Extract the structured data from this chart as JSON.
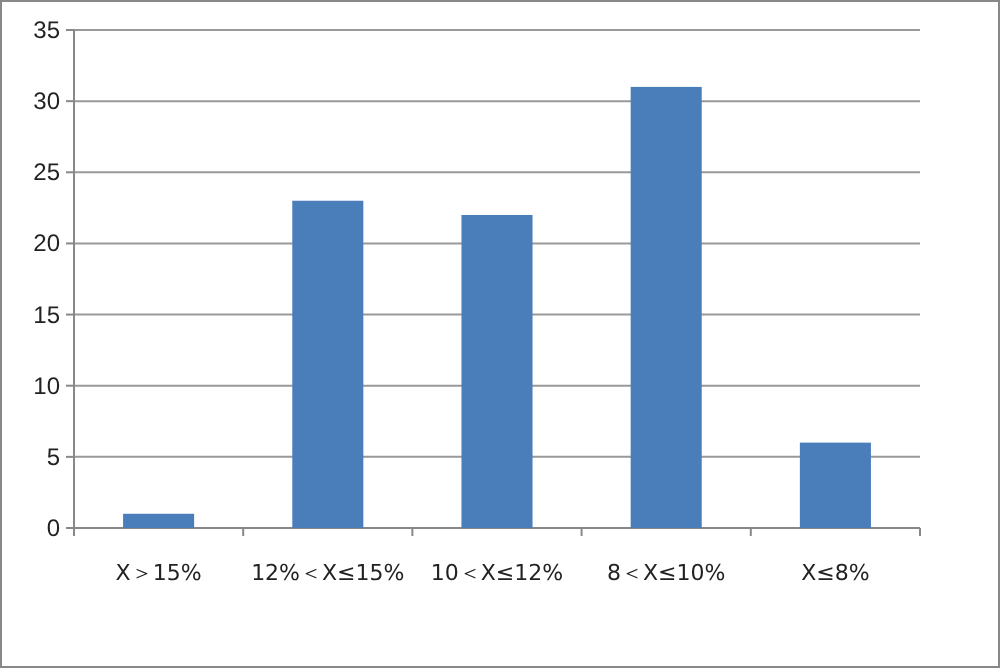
{
  "chart_data": {
    "type": "bar",
    "categories": [
      "X＞15%",
      "12%＜X≤15%",
      "10＜X≤12%",
      "8＜X≤10%",
      "X≤8%"
    ],
    "values": [
      1,
      23,
      22,
      31,
      6
    ],
    "color": "#4a7ebb",
    "ylim": [
      0,
      35
    ],
    "yticks": [
      0,
      5,
      10,
      15,
      20,
      25,
      30,
      35
    ],
    "grid": "y"
  }
}
